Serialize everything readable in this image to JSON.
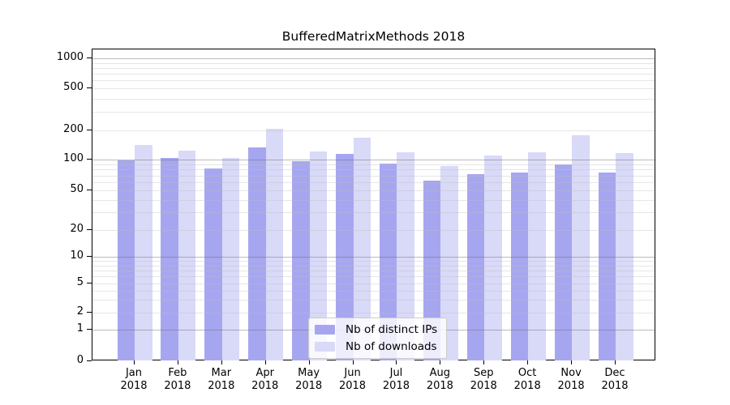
{
  "title": "BufferedMatrixMethods 2018",
  "chart_data": {
    "type": "bar",
    "title": "BufferedMatrixMethods 2018",
    "x_months": [
      "Jan",
      "Feb",
      "Mar",
      "Apr",
      "May",
      "Jun",
      "Jul",
      "Aug",
      "Sep",
      "Oct",
      "Nov",
      "Dec"
    ],
    "x_year": "2018",
    "series": [
      {
        "name": "Nb of distinct IPs",
        "color": "#a6a6f0",
        "values": [
          98,
          103,
          82,
          134,
          96,
          114,
          91,
          62,
          72,
          75,
          90,
          75
        ]
      },
      {
        "name": "Nb of downloads",
        "color": "#d9d9f8",
        "values": [
          141,
          123,
          103,
          209,
          121,
          169,
          120,
          86,
          110,
          118,
          177,
          117
        ]
      }
    ],
    "y_ticks": [
      0,
      1,
      2,
      5,
      10,
      20,
      50,
      100,
      200,
      500,
      1000
    ],
    "y_scale": "symlog",
    "ylim": [
      0,
      1000
    ],
    "grid": true,
    "legend_position": "lower center"
  }
}
